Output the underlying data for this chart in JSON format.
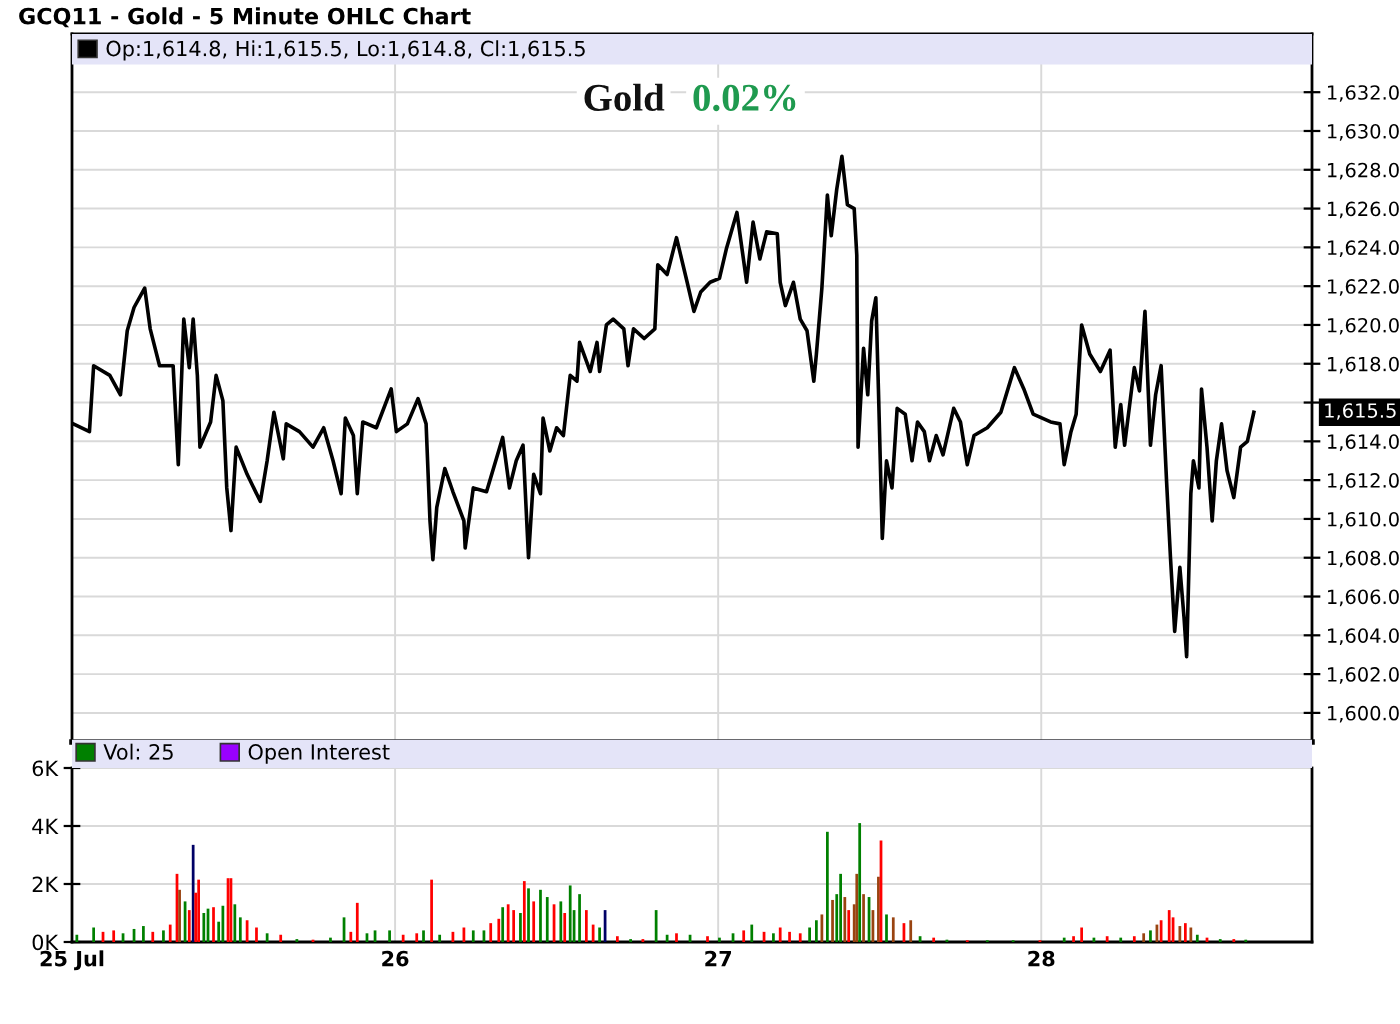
{
  "chart_data": [
    {
      "type": "line",
      "title": "GCQ11 - Gold - 5 Minute OHLC Chart",
      "annotations": [
        "Gold",
        "0.02%",
        "1,615.5"
      ],
      "xlim": [
        25,
        28.838
      ],
      "xticks": [
        25,
        26,
        27,
        28
      ],
      "ylim": [
        1598.5,
        1635
      ],
      "yticks": [
        {
          "value": 1600,
          "label": "1,600.0"
        },
        {
          "value": 1602,
          "label": "1,602.0"
        },
        {
          "value": 1604,
          "label": "1,604.0"
        },
        {
          "value": 1606,
          "label": "1,606.0"
        },
        {
          "value": 1608,
          "label": "1,608.0"
        },
        {
          "value": 1610,
          "label": "1,610.0"
        },
        {
          "value": 1612,
          "label": "1,612.0"
        },
        {
          "value": 1614,
          "label": "1,614.0"
        },
        {
          "value": 1616,
          "label": null
        },
        {
          "value": 1618,
          "label": "1,618.0"
        },
        {
          "value": 1620,
          "label": "1,620.0"
        },
        {
          "value": 1622,
          "label": "1,622.0"
        },
        {
          "value": 1624,
          "label": "1,624.0"
        },
        {
          "value": 1626,
          "label": "1,626.0"
        },
        {
          "value": 1628,
          "label": "1,628.0"
        },
        {
          "value": 1630,
          "label": "1,630.0"
        },
        {
          "value": 1632,
          "label": "1,632.0"
        }
      ],
      "tick_labels": "y",
      "grid": true,
      "legend": "top left",
      "series": [
        {
          "name": "Op:1,614.8, Hi:1,615.5, Lo:1,614.8, Cl:1,615.5",
          "color": "#000000",
          "x": [
            25.004,
            25.054,
            25.067,
            25.117,
            25.15,
            25.171,
            25.192,
            25.225,
            25.242,
            25.271,
            25.313,
            25.329,
            25.346,
            25.363,
            25.375,
            25.388,
            25.396,
            25.429,
            25.446,
            25.467,
            25.479,
            25.492,
            25.508,
            25.542,
            25.583,
            25.604,
            25.625,
            25.654,
            25.663,
            25.704,
            25.746,
            25.779,
            25.808,
            25.833,
            25.846,
            25.871,
            25.883,
            25.9,
            25.942,
            25.988,
            26.004,
            26.038,
            26.071,
            26.096,
            26.108,
            26.117,
            26.129,
            26.154,
            26.179,
            26.213,
            26.217,
            26.242,
            26.283,
            26.333,
            26.354,
            26.375,
            26.396,
            26.413,
            26.429,
            26.45,
            26.458,
            26.479,
            26.5,
            26.521,
            26.542,
            26.563,
            26.571,
            26.604,
            26.625,
            26.633,
            26.654,
            26.675,
            26.708,
            26.721,
            26.738,
            26.771,
            26.804,
            26.813,
            26.842,
            26.871,
            26.904,
            26.925,
            26.946,
            26.975,
            27.004,
            27.025,
            27.058,
            27.079,
            27.088,
            27.108,
            27.129,
            27.15,
            27.183,
            27.192,
            27.208,
            27.233,
            27.254,
            27.275,
            27.296,
            27.304,
            27.321,
            27.338,
            27.35,
            27.367,
            27.383,
            27.4,
            27.421,
            27.429,
            27.433,
            27.45,
            27.463,
            27.475,
            27.488,
            27.496,
            27.508,
            27.521,
            27.538,
            27.554,
            27.579,
            27.6,
            27.617,
            27.638,
            27.654,
            27.675,
            27.696,
            27.729,
            27.75,
            27.771,
            27.792,
            27.833,
            27.875,
            27.917,
            27.946,
            27.975,
            28.029,
            28.058,
            28.071,
            28.092,
            28.108,
            28.125,
            28.15,
            28.183,
            28.213,
            28.229,
            28.246,
            28.258,
            28.288,
            28.304,
            28.321,
            28.338,
            28.354,
            28.371,
            28.388,
            28.4,
            28.413,
            28.429,
            28.442,
            28.45,
            28.463,
            28.471,
            28.488,
            28.496,
            28.513,
            28.529,
            28.542,
            28.558,
            28.575,
            28.596,
            28.617,
            28.638,
            28.658
          ],
          "values": [
            1614.9,
            1614.5,
            1617.9,
            1617.4,
            1616.4,
            1619.7,
            1620.9,
            1621.9,
            1619.8,
            1617.9,
            1617.9,
            1612.8,
            1620.3,
            1617.8,
            1620.3,
            1617.4,
            1613.7,
            1615.0,
            1617.4,
            1616.1,
            1611.6,
            1609.4,
            1613.7,
            1612.3,
            1610.9,
            1613.0,
            1615.5,
            1613.1,
            1614.9,
            1614.5,
            1613.7,
            1614.7,
            1613.0,
            1611.3,
            1615.2,
            1614.3,
            1611.3,
            1615.0,
            1614.7,
            1616.7,
            1614.5,
            1614.9,
            1616.2,
            1614.9,
            1609.9,
            1607.9,
            1610.6,
            1612.6,
            1611.4,
            1609.9,
            1608.5,
            1611.6,
            1611.4,
            1614.2,
            1611.6,
            1613.0,
            1613.8,
            1608.0,
            1612.3,
            1611.3,
            1615.2,
            1613.5,
            1614.7,
            1614.3,
            1617.4,
            1617.1,
            1619.1,
            1617.6,
            1619.1,
            1617.6,
            1620.0,
            1620.3,
            1619.8,
            1617.9,
            1619.8,
            1619.3,
            1619.8,
            1623.1,
            1622.6,
            1624.5,
            1622.2,
            1620.7,
            1621.7,
            1622.2,
            1622.4,
            1623.9,
            1625.8,
            1623.3,
            1622.2,
            1625.3,
            1623.4,
            1624.8,
            1624.7,
            1622.2,
            1621.0,
            1622.2,
            1620.3,
            1619.7,
            1617.1,
            1618.5,
            1621.9,
            1626.7,
            1624.6,
            1627.0,
            1628.7,
            1626.2,
            1626.0,
            1623.6,
            1613.7,
            1618.8,
            1616.4,
            1620.2,
            1621.4,
            1616.7,
            1609.0,
            1613.0,
            1611.6,
            1615.7,
            1615.4,
            1613.0,
            1615.0,
            1614.5,
            1613.0,
            1614.3,
            1613.3,
            1615.7,
            1615.0,
            1612.8,
            1614.3,
            1614.7,
            1615.5,
            1617.8,
            1616.7,
            1615.4,
            1615.0,
            1614.9,
            1612.8,
            1614.5,
            1615.4,
            1620.0,
            1618.5,
            1617.6,
            1618.7,
            1613.7,
            1615.9,
            1613.8,
            1617.8,
            1616.6,
            1620.7,
            1613.8,
            1616.4,
            1617.9,
            1611.9,
            1608.0,
            1604.2,
            1607.5,
            1604.9,
            1602.9,
            1611.3,
            1613.0,
            1611.6,
            1616.7,
            1613.7,
            1609.9,
            1613.0,
            1614.9,
            1612.5,
            1611.1,
            1613.7,
            1614.0,
            1615.5
          ]
        }
      ]
    },
    {
      "type": "bar",
      "xlim": [
        25,
        28.838
      ],
      "xticks": [
        {
          "value": 25,
          "label": "25 Jul"
        },
        26,
        27,
        28
      ],
      "ylim": [
        0,
        6000
      ],
      "yticks": [
        {
          "value": 0,
          "label": "0K"
        },
        {
          "value": 2000,
          "label": "2K"
        },
        {
          "value": 4000,
          "label": "4K"
        },
        {
          "value": 6000,
          "label": "6K"
        }
      ],
      "grid": true,
      "legend": "top",
      "series": [
        {
          "name": "Vol: 25",
          "color": "#008000",
          "x": [
            25.015,
            25.067,
            25.096,
            25.129,
            25.158,
            25.192,
            25.221,
            25.25,
            25.283,
            25.304,
            25.325,
            25.333,
            25.35,
            25.363,
            25.375,
            25.383,
            25.392,
            25.408,
            25.421,
            25.438,
            25.454,
            25.467,
            25.483,
            25.492,
            25.504,
            25.521,
            25.542,
            25.571,
            25.604,
            25.646,
            25.696,
            25.746,
            25.8,
            25.842,
            25.863,
            25.883,
            25.913,
            25.938,
            25.983,
            26.025,
            26.067,
            26.088,
            26.113,
            26.138,
            26.179,
            26.213,
            26.242,
            26.275,
            26.296,
            26.321,
            26.333,
            26.35,
            26.367,
            26.388,
            26.4,
            26.413,
            26.429,
            26.45,
            26.471,
            26.492,
            26.513,
            26.525,
            26.542,
            26.554,
            26.571,
            26.592,
            26.613,
            26.633,
            26.65,
            26.688,
            26.729,
            26.767,
            26.808,
            26.842,
            26.871,
            26.913,
            26.967,
            27.004,
            27.046,
            27.079,
            27.104,
            27.142,
            27.171,
            27.192,
            27.221,
            27.254,
            27.283,
            27.304,
            27.321,
            27.338,
            27.354,
            27.367,
            27.379,
            27.392,
            27.404,
            27.421,
            27.429,
            27.438,
            27.45,
            27.467,
            27.479,
            27.496,
            27.504,
            27.521,
            27.542,
            27.575,
            27.596,
            27.625,
            27.667,
            27.708,
            27.771,
            27.833,
            27.913,
            27.996,
            28.071,
            28.1,
            28.125,
            28.163,
            28.204,
            28.246,
            28.288,
            28.317,
            28.338,
            28.358,
            28.371,
            28.396,
            28.408,
            28.429,
            28.446,
            28.463,
            28.483,
            28.513,
            28.554,
            28.596,
            28.633
          ],
          "values": [
            250,
            500,
            350,
            400,
            300,
            450,
            550,
            350,
            400,
            600,
            2350,
            1800,
            1400,
            1100,
            3350,
            1700,
            2150,
            1000,
            1150,
            1200,
            700,
            1250,
            2200,
            2200,
            1300,
            850,
            750,
            500,
            300,
            250,
            100,
            80,
            150,
            850,
            350,
            1350,
            300,
            400,
            400,
            250,
            300,
            400,
            2150,
            250,
            350,
            500,
            400,
            400,
            650,
            800,
            1200,
            1300,
            1100,
            1000,
            2100,
            1850,
            1400,
            1800,
            1550,
            1300,
            1400,
            1000,
            1950,
            1100,
            1650,
            1100,
            600,
            500,
            1100,
            200,
            100,
            100,
            1100,
            250,
            300,
            250,
            200,
            150,
            300,
            400,
            600,
            350,
            300,
            500,
            350,
            300,
            500,
            750,
            950,
            3800,
            1450,
            1650,
            2350,
            1550,
            1100,
            1300,
            2350,
            4100,
            1650,
            1550,
            1100,
            2250,
            3500,
            950,
            850,
            650,
            750,
            200,
            150,
            80,
            60,
            60,
            60,
            60,
            150,
            200,
            500,
            150,
            200,
            150,
            200,
            300,
            400,
            600,
            750,
            1100,
            850,
            550,
            650,
            500,
            250,
            150,
            100,
            100,
            80
          ],
          "colors": [
            "#008000",
            "#008000",
            "#ff0000",
            "#ff0000",
            "#008000",
            "#008000",
            "#008000",
            "#ff0000",
            "#008000",
            "#ff0000",
            "#ff0000",
            "#994411",
            "#008000",
            "#ff0000",
            "#000066",
            "#ff0000",
            "#ff0000",
            "#008000",
            "#008000",
            "#ff0000",
            "#008000",
            "#008000",
            "#ff0000",
            "#ff0000",
            "#008000",
            "#008000",
            "#ff0000",
            "#ff0000",
            "#008000",
            "#ff0000",
            "#008000",
            "#ff0000",
            "#008000",
            "#008000",
            "#ff0000",
            "#ff0000",
            "#008000",
            "#008000",
            "#008000",
            "#ff0000",
            "#ff0000",
            "#008000",
            "#ff0000",
            "#008000",
            "#ff0000",
            "#ff0000",
            "#008000",
            "#008000",
            "#ff0000",
            "#ff0000",
            "#008000",
            "#ff0000",
            "#ff0000",
            "#008000",
            "#ff0000",
            "#008000",
            "#ff0000",
            "#008000",
            "#008000",
            "#ff0000",
            "#008000",
            "#ff0000",
            "#008000",
            "#008000",
            "#008000",
            "#ff0000",
            "#ff0000",
            "#008000",
            "#000066",
            "#ff0000",
            "#008000",
            "#ff0000",
            "#008000",
            "#008000",
            "#ff0000",
            "#008000",
            "#ff0000",
            "#008000",
            "#008000",
            "#ff0000",
            "#008000",
            "#ff0000",
            "#008000",
            "#ff0000",
            "#ff0000",
            "#ff0000",
            "#008000",
            "#008000",
            "#994411",
            "#008000",
            "#994411",
            "#008000",
            "#008000",
            "#994411",
            "#ff0000",
            "#994411",
            "#994411",
            "#008000",
            "#994411",
            "#008000",
            "#994411",
            "#994411",
            "#ff0000",
            "#008000",
            "#994411",
            "#ff0000",
            "#994411",
            "#008000",
            "#ff0000",
            "#008000",
            "#ff0000",
            "#008000",
            "#008000",
            "#ff0000",
            "#008000",
            "#ff0000",
            "#ff0000",
            "#008000",
            "#ff0000",
            "#008000",
            "#ff0000",
            "#994411",
            "#008000",
            "#994411",
            "#ff0000",
            "#ff0000",
            "#ff0000",
            "#994411",
            "#ff0000",
            "#994411",
            "#008000",
            "#ff0000",
            "#008000",
            "#ff0000",
            "#008000"
          ]
        },
        {
          "name": "Open Interest",
          "color": "#9900ff"
        }
      ]
    }
  ]
}
